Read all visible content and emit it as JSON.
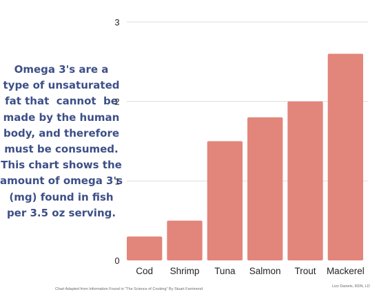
{
  "description": "Omega 3's are a type of unsaturated fat that  cannot  be made by the human body, and therefore must be consumed. This chart shows the amount of omega 3's (mg) found in fish per 3.5 oz serving.",
  "source_note": "Chart Adapted from Information Found in \"The Science of Cooking\" By Stuart Farrimond",
  "credit": "Lizz Daniels, RDN, LD",
  "chart_data": {
    "type": "bar",
    "categories": [
      "Cod",
      "Shrimp",
      "Tuna",
      "Salmon",
      "Trout",
      "Mackerel"
    ],
    "values": [
      0.3,
      0.5,
      1.5,
      1.8,
      2.0,
      2.6
    ],
    "ylim": [
      0,
      3
    ],
    "yticks": [
      0,
      1,
      2,
      3
    ],
    "grid": true,
    "bar_color": "#e2857a",
    "grid_color": "#dddddd"
  },
  "colors": {
    "description_text": "#3d4f87"
  }
}
